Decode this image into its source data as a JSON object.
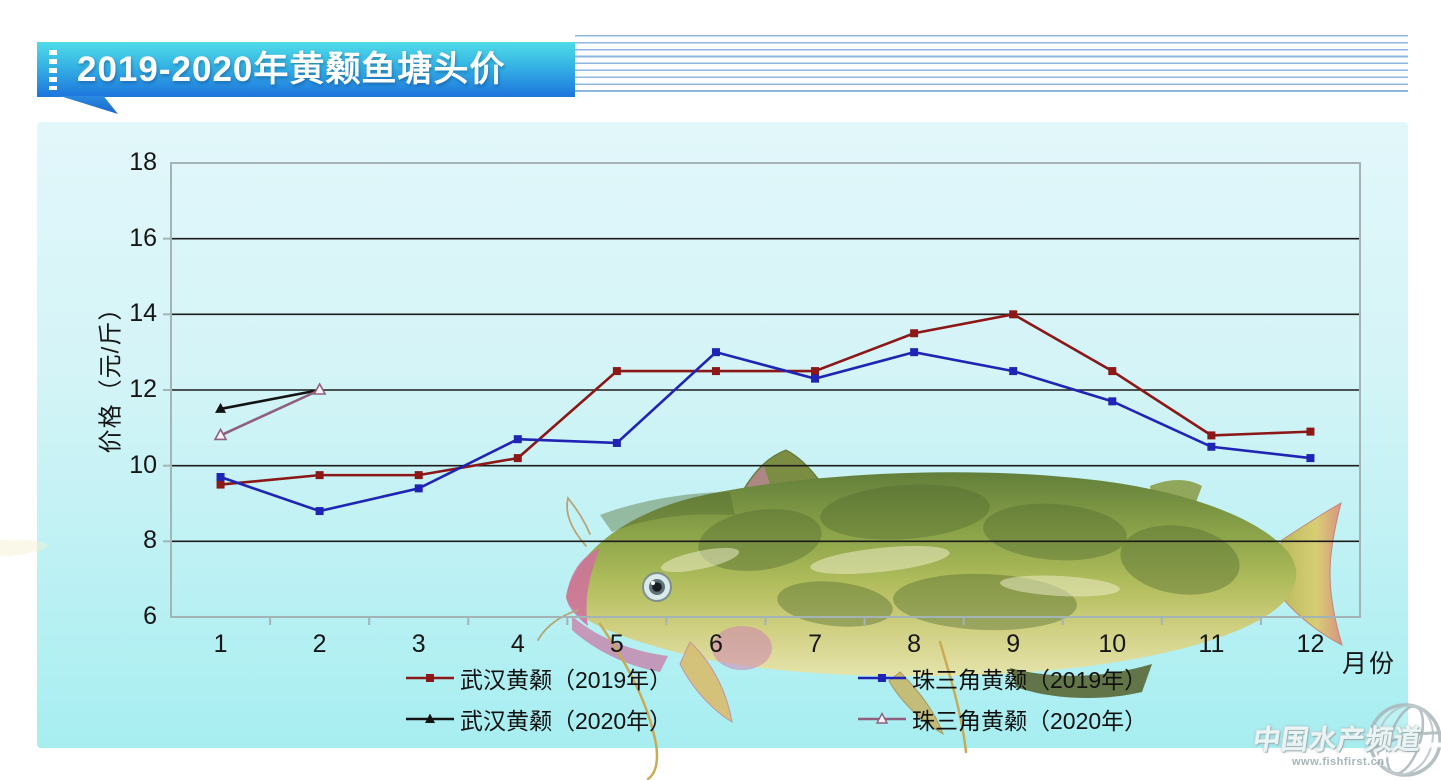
{
  "banner": {
    "title": "2019-2020年黄颡鱼塘头价"
  },
  "chart_data": {
    "type": "line",
    "title": "2019-2020年黄颡鱼塘头价",
    "xlabel": "月份",
    "ylabel": "价格（元/斤）",
    "x": [
      1,
      2,
      3,
      4,
      5,
      6,
      7,
      8,
      9,
      10,
      11,
      12
    ],
    "ylim": [
      6,
      18
    ],
    "yticks": [
      6,
      8,
      10,
      12,
      14,
      16,
      18
    ],
    "grid": "horizontal-black",
    "legend_position": "bottom",
    "series": [
      {
        "name": "武汉黄颡（2019年）",
        "color": "#8b1717",
        "marker": "square",
        "values": [
          9.5,
          9.75,
          9.75,
          10.2,
          12.5,
          12.5,
          12.5,
          13.5,
          14,
          12.5,
          10.8,
          10.9
        ]
      },
      {
        "name": "珠三角黄颡（2019年）",
        "color": "#1f24b4",
        "marker": "square",
        "values": [
          9.7,
          8.8,
          9.4,
          10.7,
          10.6,
          13,
          12.3,
          13,
          12.5,
          11.7,
          10.5,
          10.2
        ]
      },
      {
        "name": "武汉黄颡（2020年）",
        "color": "#141414",
        "marker": "triangle",
        "values": [
          11.5,
          12
        ]
      },
      {
        "name": "珠三角黄颡（2020年）",
        "color": "#8e5f7f",
        "marker": "triangle-open",
        "values": [
          10.8,
          12
        ]
      }
    ]
  },
  "watermark": {
    "site_name": "中国水产频道",
    "site_url": "www.fishfirst.cn",
    "globe_icon": "globe-icon"
  },
  "decor": {
    "fish_image": "yellow-catfish-photo",
    "panel_color_top": "#e2f7fa",
    "panel_color_bottom": "#a7eef1",
    "banner_color_top": "#4fdce8",
    "banner_color_bottom": "#1d74dd"
  }
}
